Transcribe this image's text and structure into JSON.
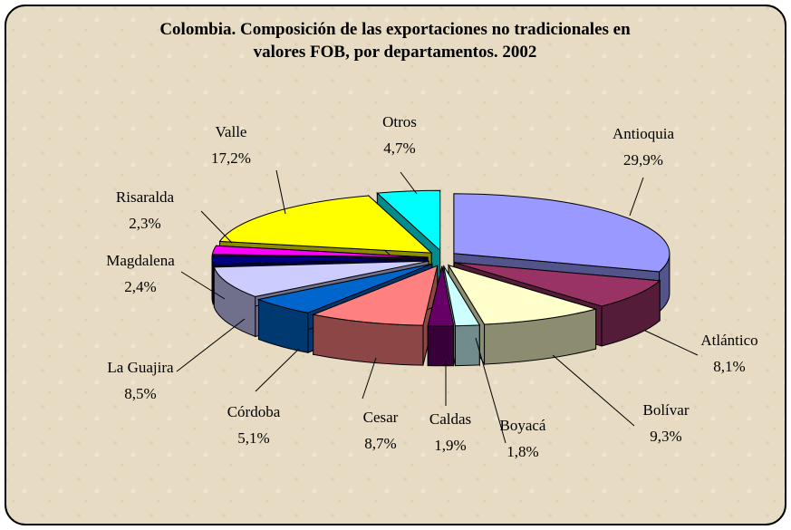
{
  "chart_data": {
    "type": "pie3d",
    "title": "Colombia. Composición de las exportaciones no tradicionales en valores FOB, por departamentos. 2002",
    "categories": [
      "Antioquia",
      "Atlántico",
      "Bolívar",
      "Boyacá",
      "Caldas",
      "Cesar",
      "Córdoba",
      "La Guajira",
      "Magdalena",
      "Risaralda",
      "Valle",
      "Otros"
    ],
    "values": [
      29.9,
      8.1,
      9.3,
      1.8,
      1.9,
      8.7,
      5.1,
      8.5,
      2.4,
      2.3,
      17.2,
      4.7
    ],
    "value_labels": [
      "29,9%",
      "8,1%",
      "9,3%",
      "1,8%",
      "1,9%",
      "8,7%",
      "5,1%",
      "8,5%",
      "2,4%",
      "2,3%",
      "17,2%",
      "4,7%"
    ],
    "colors": [
      "#9999ff",
      "#993366",
      "#ffffcc",
      "#ccffff",
      "#660066",
      "#ff8080",
      "#0066cc",
      "#ccccff",
      "#000080",
      "#ff00ff",
      "#ffff00",
      "#00ffff"
    ]
  }
}
